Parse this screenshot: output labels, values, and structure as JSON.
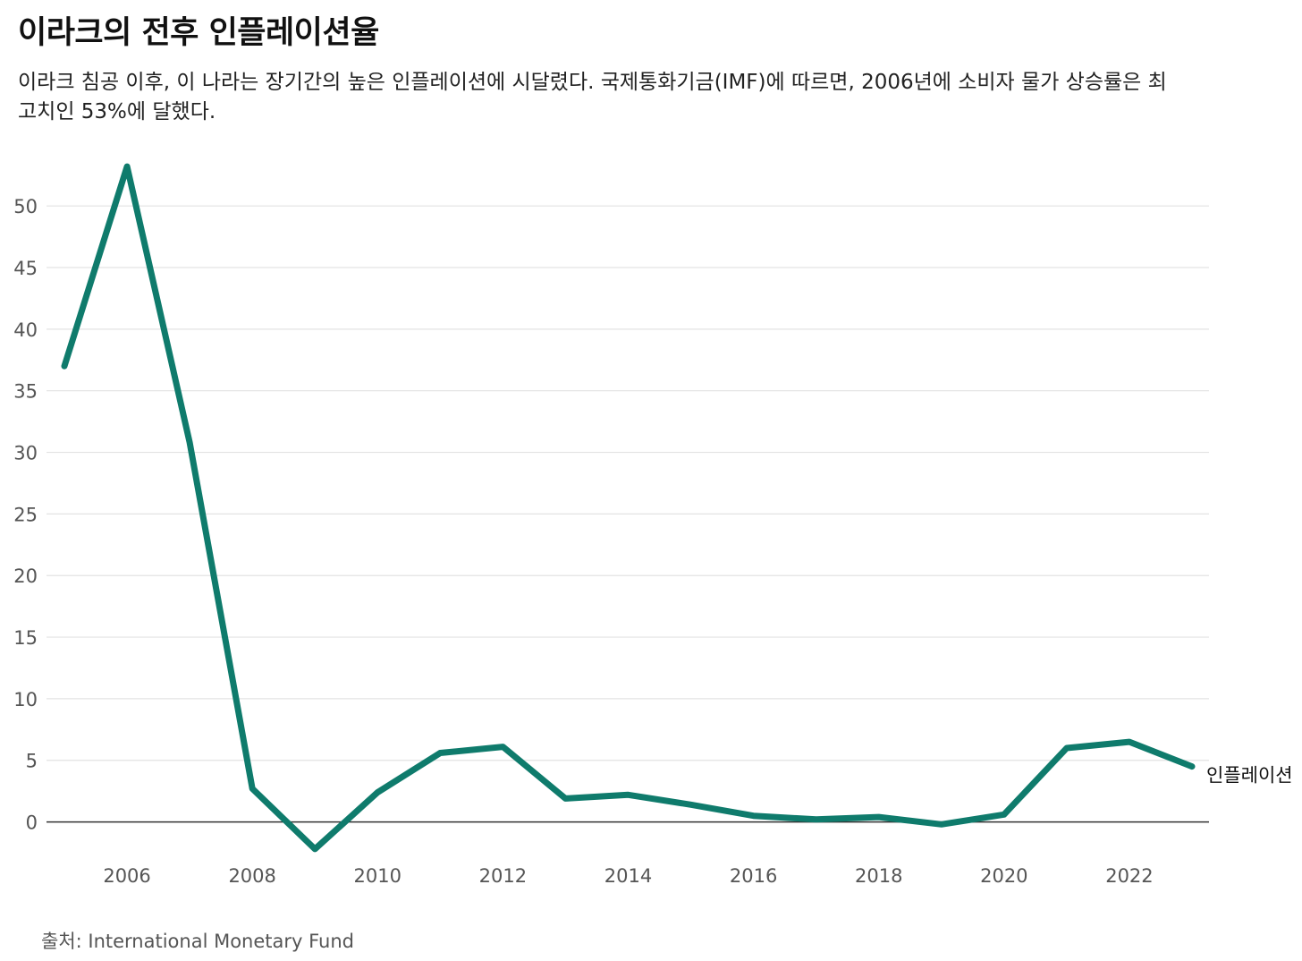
{
  "chart_data": {
    "type": "line",
    "title": "이라크의 전후 인플레이션율",
    "subtitle": "이라크 침공 이후, 이 나라는 장기간의 높은 인플레이션에 시달렸다. 국제통화기금(IMF)에 따르면, 2006년에 소비자 물가 상승률은 최고치인 53%에 달했다.",
    "xlabel": "",
    "ylabel": "",
    "x": [
      2005,
      2006,
      2007,
      2008,
      2009,
      2010,
      2011,
      2012,
      2013,
      2014,
      2015,
      2016,
      2017,
      2018,
      2019,
      2020,
      2021,
      2022,
      2023
    ],
    "series": [
      {
        "name": "인플레이션",
        "values": [
          37.0,
          53.2,
          30.8,
          2.7,
          -2.2,
          2.4,
          5.6,
          6.1,
          1.9,
          2.2,
          1.4,
          0.5,
          0.2,
          0.4,
          -0.2,
          0.6,
          6.0,
          6.5,
          4.5
        ]
      }
    ],
    "xticks": [
      2006,
      2008,
      2010,
      2012,
      2014,
      2016,
      2018,
      2020,
      2022
    ],
    "yticks": [
      0,
      5,
      10,
      15,
      20,
      25,
      30,
      35,
      40,
      45,
      50
    ],
    "ylim": [
      -2.5,
      53.5
    ],
    "xlim": [
      2005,
      2023
    ],
    "grid": true,
    "line_color": "#0f7b6c",
    "source": "출처: International Monetary Fund"
  }
}
